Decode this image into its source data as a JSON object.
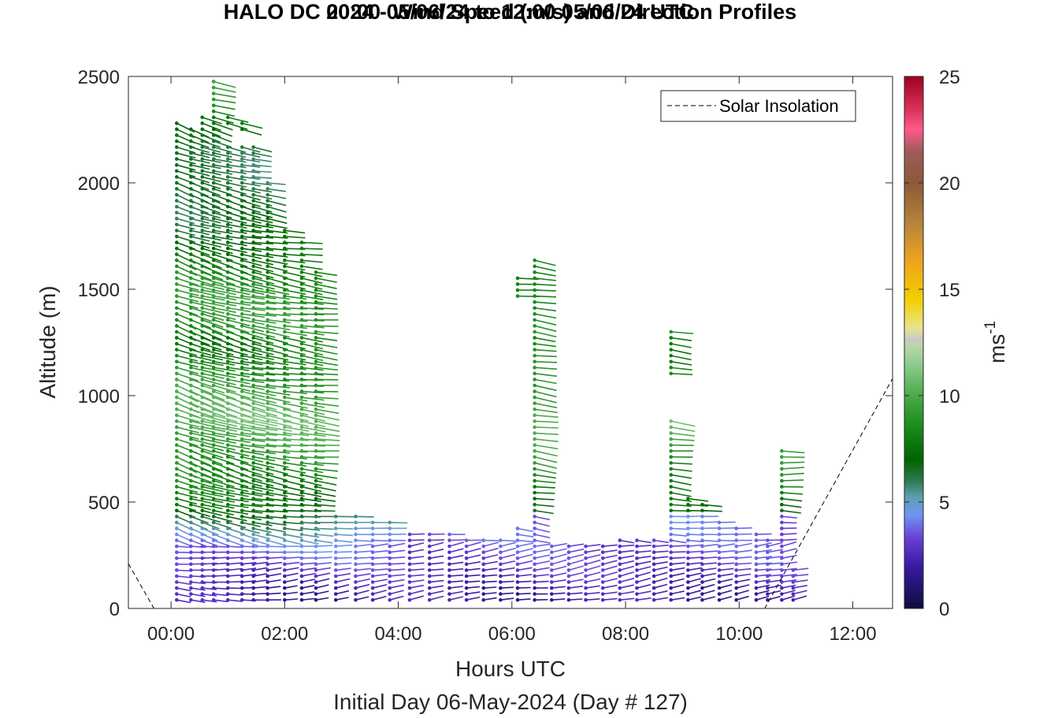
{
  "chart_data": {
    "type": "wind-barb profile",
    "title": "HALO DC 2024 - Wind Speed (m/s) and Direction Profiles",
    "subtitle": "00:00 05/06/24 to 12:00 05/06/24  UTC",
    "xlabel": "Hours UTC",
    "xlabel2": "Initial Day 06-May-2024 (Day # 127)",
    "ylabel": "Altitude (m)",
    "colorbar_label": "ms",
    "colorbar_label_exp": "-1",
    "legend": [
      {
        "name": "Solar Insolation",
        "style": "dashed",
        "color": "#000000"
      }
    ],
    "legend_placement": "top-right",
    "xlim": [
      -0.75,
      12.7
    ],
    "ylim": [
      0,
      2500
    ],
    "xticks": [
      0,
      2,
      4,
      6,
      8,
      10,
      12
    ],
    "xtick_labels": [
      "00:00",
      "02:00",
      "04:00",
      "06:00",
      "08:00",
      "10:00",
      "12:00"
    ],
    "yticks": [
      0,
      500,
      1000,
      1500,
      2000,
      2500
    ],
    "ytick_labels": [
      "0",
      "500",
      "1000",
      "1500",
      "2000",
      "2500"
    ],
    "colorbar_range": [
      0,
      25
    ],
    "colorbar_ticks": [
      0,
      5,
      10,
      15,
      20,
      25
    ],
    "colorbar_tick_labels": [
      "0",
      "5",
      "10",
      "15",
      "20",
      "25"
    ],
    "colormap_stops": [
      [
        0,
        "#0d0d3f"
      ],
      [
        2,
        "#3a1aa0"
      ],
      [
        3.3,
        "#6a3fd8"
      ],
      [
        4.4,
        "#6f94f2"
      ],
      [
        5.2,
        "#5f9fb5"
      ],
      [
        6,
        "#2e7a4f"
      ],
      [
        7,
        "#006400"
      ],
      [
        8.5,
        "#1a8a1a"
      ],
      [
        10,
        "#4aaa4a"
      ],
      [
        11.5,
        "#8fcc8f"
      ],
      [
        12.3,
        "#b6d9a8"
      ],
      [
        12.6,
        "#c8c8c8"
      ],
      [
        13.2,
        "#e8e58a"
      ],
      [
        14.5,
        "#f2d000"
      ],
      [
        16.5,
        "#eba020"
      ],
      [
        18,
        "#b8863b"
      ],
      [
        20,
        "#8a5a3a"
      ],
      [
        21.5,
        "#a05a5a"
      ],
      [
        22.5,
        "#ff5a8a"
      ],
      [
        23.5,
        "#d8305a"
      ],
      [
        25,
        "#a0001e"
      ]
    ],
    "solar_insolation": [
      {
        "x": -0.75,
        "y": 210
      },
      {
        "x": -0.3,
        "y": 0
      },
      {
        "x": 10.45,
        "y": 0
      },
      {
        "x": 12.7,
        "y": 1080
      }
    ],
    "profiles": [
      {
        "time": 0.1,
        "top": 2280,
        "gap": [],
        "dir": 290
      },
      {
        "time": 0.35,
        "top": 2270,
        "gap": [],
        "dir": 288
      },
      {
        "time": 0.55,
        "top": 2320,
        "gap": [],
        "dir": 286
      },
      {
        "time": 0.75,
        "top": 2500,
        "gap": [],
        "dir": 285
      },
      {
        "time": 1.0,
        "top": 2320,
        "gap": [
          2180,
          2260
        ],
        "dir": 284
      },
      {
        "time": 1.25,
        "top": 2280,
        "gap": [
          2180,
          2250
        ],
        "dir": 282
      },
      {
        "time": 1.45,
        "top": 2180,
        "gap": [],
        "dir": 280
      },
      {
        "time": 1.7,
        "top": 2000,
        "gap": [],
        "dir": 280
      },
      {
        "time": 2.0,
        "top": 1780,
        "gap": [],
        "dir": 278
      },
      {
        "time": 2.3,
        "top": 1720,
        "gap": [],
        "dir": 278
      },
      {
        "time": 2.55,
        "top": 1600,
        "gap": [],
        "dir": 276
      },
      {
        "time": 2.9,
        "top": 450,
        "gap": [],
        "dir": 276
      },
      {
        "time": 3.25,
        "top": 440,
        "gap": [],
        "dir": 275
      },
      {
        "time": 3.55,
        "top": 420,
        "gap": [],
        "dir": 275
      },
      {
        "time": 3.85,
        "top": 420,
        "gap": [],
        "dir": 275
      },
      {
        "time": 4.2,
        "top": 370,
        "gap": [],
        "dir": 274
      },
      {
        "time": 4.55,
        "top": 370,
        "gap": [],
        "dir": 274
      },
      {
        "time": 4.9,
        "top": 350,
        "gap": [],
        "dir": 274
      },
      {
        "time": 5.2,
        "top": 340,
        "gap": [],
        "dir": 274
      },
      {
        "time": 5.5,
        "top": 320,
        "gap": [
          1000,
          1120
        ],
        "dir": 275
      },
      {
        "time": 5.8,
        "top": 320,
        "gap": [],
        "dir": 275
      },
      {
        "time": 6.1,
        "top": 1570,
        "gap": [
          400,
          1450
        ],
        "dir": 276
      },
      {
        "time": 6.4,
        "top": 1650,
        "gap": [],
        "dir": 278
      },
      {
        "time": 6.7,
        "top": 300,
        "gap": [],
        "dir": 274
      },
      {
        "time": 7.0,
        "top": 300,
        "gap": [],
        "dir": 274
      },
      {
        "time": 7.3,
        "top": 300,
        "gap": [],
        "dir": 274
      },
      {
        "time": 7.6,
        "top": 310,
        "gap": [],
        "dir": 274
      },
      {
        "time": 7.9,
        "top": 320,
        "gap": [],
        "dir": 274
      },
      {
        "time": 8.2,
        "top": 330,
        "gap": [],
        "dir": 274
      },
      {
        "time": 8.5,
        "top": 340,
        "gap": [],
        "dir": 274
      },
      {
        "time": 8.8,
        "top": 1320,
        "gap": [
          880,
          1100
        ],
        "dir": 276
      },
      {
        "time": 9.1,
        "top": 530,
        "gap": [],
        "dir": 274
      },
      {
        "time": 9.35,
        "top": 500,
        "gap": [],
        "dir": 274
      },
      {
        "time": 9.65,
        "top": 430,
        "gap": [],
        "dir": 274
      },
      {
        "time": 9.95,
        "top": 380,
        "gap": [],
        "dir": 274
      },
      {
        "time": 10.3,
        "top": 360,
        "gap": [],
        "dir": 274
      },
      {
        "time": 10.5,
        "top": 330,
        "gap": [],
        "dir": 274
      },
      {
        "time": 10.75,
        "top": 750,
        "gap": [],
        "dir": 272
      },
      {
        "time": 10.95,
        "top": 200,
        "gap": [],
        "dir": 272
      }
    ]
  }
}
